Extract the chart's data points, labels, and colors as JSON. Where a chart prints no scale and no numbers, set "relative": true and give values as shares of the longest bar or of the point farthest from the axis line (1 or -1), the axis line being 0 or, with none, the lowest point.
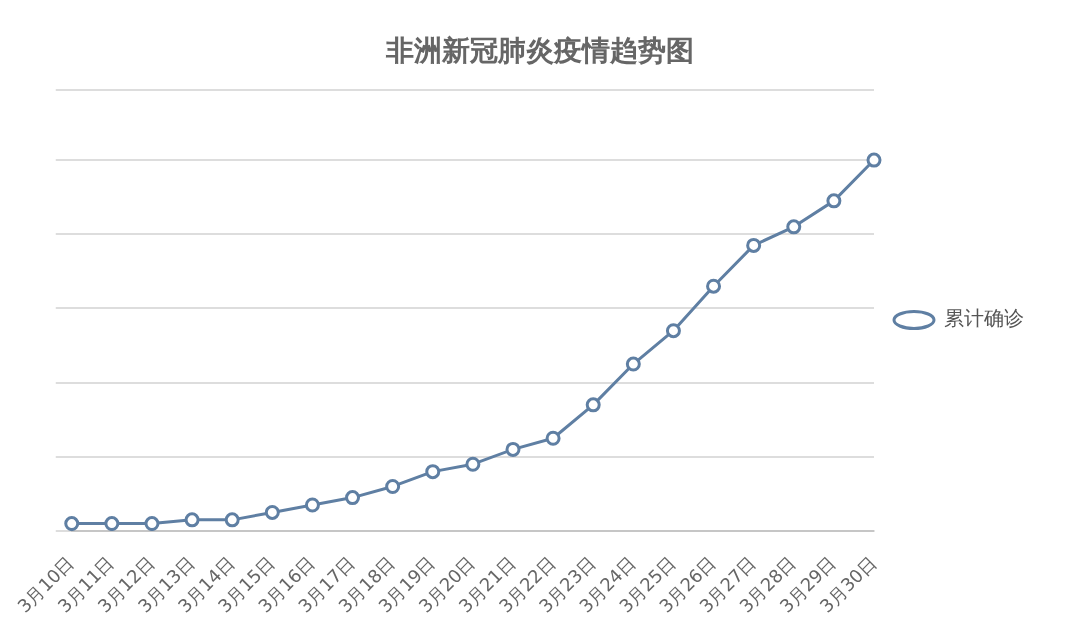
{
  "chart_data": {
    "type": "line",
    "title": "非洲新冠肺炎疫情趋势图",
    "relative": true,
    "categories": [
      "3月10日",
      "3月11日",
      "3月12日",
      "3月13日",
      "3月14日",
      "3月15日",
      "3月16日",
      "3月17日",
      "3月18日",
      "3月19日",
      "3月20日",
      "3月21日",
      "3月22日",
      "3月23日",
      "3月24日",
      "3月25日",
      "3月26日",
      "3月27日",
      "3月28日",
      "3月29日",
      "3月30日"
    ],
    "series": [
      {
        "name": "累计确诊",
        "color": "#5f7fa3",
        "values": [
          0.02,
          0.02,
          0.02,
          0.03,
          0.03,
          0.05,
          0.07,
          0.09,
          0.12,
          0.16,
          0.18,
          0.22,
          0.25,
          0.34,
          0.45,
          0.54,
          0.66,
          0.77,
          0.82,
          0.89,
          1
        ]
      }
    ],
    "grid": "y",
    "legend": "right",
    "marker": "circle",
    "line_style": "solid"
  }
}
